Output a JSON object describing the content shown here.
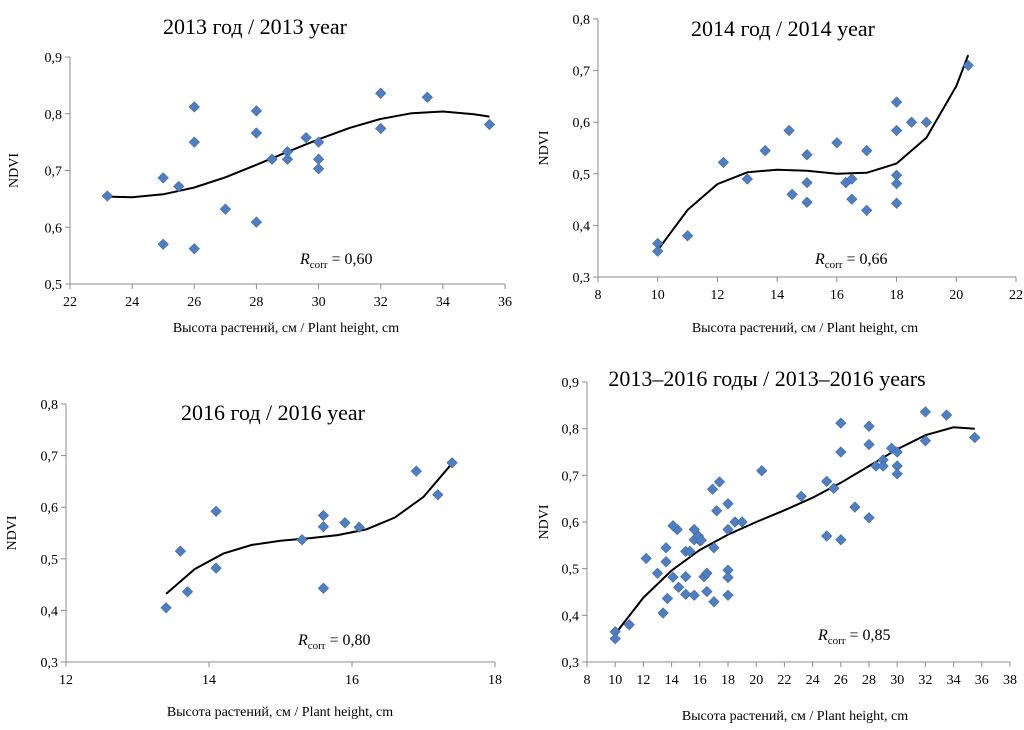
{
  "chart_data": [
    {
      "type": "scatter",
      "title": "2013 год / 2013 year",
      "xlabel": "Высота растений, см / Plant height, cm",
      "ylabel": "NDVI",
      "xlim": [
        22,
        36
      ],
      "ylim": [
        0.5,
        0.9
      ],
      "xticks": [
        22,
        24,
        26,
        28,
        30,
        32,
        34,
        36
      ],
      "yticks": [
        0.5,
        0.6,
        0.7,
        0.8,
        0.9
      ],
      "xtick_labels": [
        "22",
        "24",
        "26",
        "28",
        "30",
        "32",
        "34",
        "36"
      ],
      "ytick_labels": [
        "0,5",
        "0,6",
        "0,7",
        "0,8",
        "0,9"
      ],
      "grid": false,
      "correlation": {
        "symbol": "R",
        "sub": "corr",
        "text": " = 0,60"
      },
      "trendline": {
        "type": "polynomial",
        "points": [
          [
            23.2,
            0.654
          ],
          [
            24,
            0.653
          ],
          [
            25,
            0.658
          ],
          [
            26,
            0.67
          ],
          [
            27,
            0.688
          ],
          [
            28,
            0.71
          ],
          [
            29,
            0.733
          ],
          [
            30,
            0.755
          ],
          [
            31,
            0.775
          ],
          [
            32,
            0.791
          ],
          [
            33,
            0.801
          ],
          [
            34,
            0.804
          ],
          [
            35,
            0.799
          ],
          [
            35.5,
            0.795
          ]
        ]
      },
      "points": [
        [
          23.2,
          0.655
        ],
        [
          25,
          0.687
        ],
        [
          25.5,
          0.672
        ],
        [
          25,
          0.57
        ],
        [
          26,
          0.812
        ],
        [
          26,
          0.75
        ],
        [
          26,
          0.562
        ],
        [
          27,
          0.632
        ],
        [
          28,
          0.805
        ],
        [
          28,
          0.766
        ],
        [
          28,
          0.609
        ],
        [
          28.5,
          0.72
        ],
        [
          29,
          0.733
        ],
        [
          29,
          0.72
        ],
        [
          29.6,
          0.758
        ],
        [
          30,
          0.75
        ],
        [
          30,
          0.72
        ],
        [
          30,
          0.703
        ],
        [
          32,
          0.836
        ],
        [
          32,
          0.774
        ],
        [
          33.5,
          0.829
        ],
        [
          35.5,
          0.781
        ]
      ]
    },
    {
      "type": "scatter",
      "title": "2014 год / 2014 year",
      "xlabel": "Высота растений, см / Plant height, cm",
      "ylabel": "NDVI",
      "xlim": [
        8,
        22
      ],
      "ylim": [
        0.3,
        0.8
      ],
      "xticks": [
        8,
        10,
        12,
        14,
        16,
        18,
        20,
        22
      ],
      "yticks": [
        0.3,
        0.4,
        0.5,
        0.6,
        0.7,
        0.8
      ],
      "xtick_labels": [
        "8",
        "10",
        "12",
        "14",
        "16",
        "18",
        "20",
        "22"
      ],
      "ytick_labels": [
        "0,3",
        "0,4",
        "0,5",
        "0,6",
        "0,7",
        "0,8"
      ],
      "grid": false,
      "correlation": {
        "symbol": "R",
        "sub": "corr",
        "text": " = 0,66"
      },
      "trendline": {
        "type": "polynomial",
        "points": [
          [
            10,
            0.352
          ],
          [
            11,
            0.43
          ],
          [
            12,
            0.48
          ],
          [
            13,
            0.503
          ],
          [
            14,
            0.508
          ],
          [
            15,
            0.506
          ],
          [
            16,
            0.5
          ],
          [
            17,
            0.502
          ],
          [
            18,
            0.52
          ],
          [
            19,
            0.57
          ],
          [
            20,
            0.67
          ],
          [
            20.4,
            0.73
          ]
        ]
      },
      "points": [
        [
          10,
          0.365
        ],
        [
          10,
          0.35
        ],
        [
          11,
          0.38
        ],
        [
          12.2,
          0.522
        ],
        [
          13,
          0.49
        ],
        [
          13.6,
          0.545
        ],
        [
          14.4,
          0.584
        ],
        [
          14.5,
          0.46
        ],
        [
          15,
          0.537
        ],
        [
          15,
          0.483
        ],
        [
          15,
          0.445
        ],
        [
          16,
          0.56
        ],
        [
          16.3,
          0.483
        ],
        [
          16.5,
          0.49
        ],
        [
          16.5,
          0.451
        ],
        [
          17,
          0.545
        ],
        [
          17,
          0.429
        ],
        [
          18,
          0.639
        ],
        [
          18,
          0.584
        ],
        [
          18,
          0.497
        ],
        [
          18,
          0.481
        ],
        [
          18,
          0.443
        ],
        [
          18.5,
          0.6
        ],
        [
          19,
          0.6
        ],
        [
          20.4,
          0.71
        ]
      ]
    },
    {
      "type": "scatter",
      "title": "2016 год / 2016 year",
      "xlabel": "Высота растений, см / Plant height, cm",
      "ylabel": "NDVI",
      "xlim": [
        12,
        18
      ],
      "ylim": [
        0.3,
        0.8
      ],
      "xticks": [
        12,
        14,
        16,
        18
      ],
      "yticks": [
        0.3,
        0.4,
        0.5,
        0.6,
        0.7,
        0.8
      ],
      "xtick_labels": [
        "12",
        "14",
        "16",
        "18"
      ],
      "ytick_labels": [
        "0,3",
        "0,4",
        "0,5",
        "0,6",
        "0,7",
        "0,8"
      ],
      "grid": false,
      "correlation": {
        "symbol": "R",
        "sub": "corr",
        "text": " = 0,80"
      },
      "trendline": {
        "type": "polynomial",
        "points": [
          [
            13.4,
            0.432
          ],
          [
            13.8,
            0.48
          ],
          [
            14.2,
            0.51
          ],
          [
            14.6,
            0.527
          ],
          [
            15,
            0.535
          ],
          [
            15.4,
            0.54
          ],
          [
            15.8,
            0.546
          ],
          [
            16.2,
            0.557
          ],
          [
            16.6,
            0.58
          ],
          [
            17,
            0.62
          ],
          [
            17.4,
            0.685
          ]
        ]
      },
      "points": [
        [
          13.4,
          0.405
        ],
        [
          13.6,
          0.515
        ],
        [
          13.7,
          0.436
        ],
        [
          14.1,
          0.592
        ],
        [
          14.1,
          0.482
        ],
        [
          15.3,
          0.537
        ],
        [
          15.6,
          0.584
        ],
        [
          15.6,
          0.562
        ],
        [
          15.6,
          0.443
        ],
        [
          15.9,
          0.57
        ],
        [
          16.1,
          0.561
        ],
        [
          16.9,
          0.67
        ],
        [
          17.2,
          0.624
        ],
        [
          17.4,
          0.686
        ]
      ]
    },
    {
      "type": "scatter",
      "title": "2013–2016 годы / 2013–2016 years",
      "xlabel": "Высота растений, см / Plant height, cm",
      "ylabel": "NDVI",
      "xlim": [
        8,
        38
      ],
      "ylim": [
        0.3,
        0.9
      ],
      "xticks": [
        8,
        10,
        12,
        14,
        16,
        18,
        20,
        22,
        24,
        26,
        28,
        30,
        32,
        34,
        36,
        38
      ],
      "yticks": [
        0.3,
        0.4,
        0.5,
        0.6,
        0.7,
        0.8,
        0.9
      ],
      "xtick_labels": [
        "8",
        "10",
        "12",
        "14",
        "16",
        "18",
        "20",
        "22",
        "24",
        "26",
        "28",
        "30",
        "32",
        "34",
        "36",
        "38"
      ],
      "ytick_labels": [
        "0,3",
        "0,4",
        "0,5",
        "0,6",
        "0,7",
        "0,8",
        "0,9"
      ],
      "grid": false,
      "correlation": {
        "symbol": "R",
        "sub": "corr",
        "text": " = 0,85"
      },
      "trendline": {
        "type": "polynomial",
        "points": [
          [
            10,
            0.36
          ],
          [
            12,
            0.438
          ],
          [
            14,
            0.496
          ],
          [
            16,
            0.54
          ],
          [
            18,
            0.573
          ],
          [
            20,
            0.6
          ],
          [
            22,
            0.625
          ],
          [
            24,
            0.652
          ],
          [
            26,
            0.684
          ],
          [
            28,
            0.72
          ],
          [
            30,
            0.756
          ],
          [
            32,
            0.786
          ],
          [
            34,
            0.803
          ],
          [
            35.5,
            0.8
          ]
        ]
      },
      "points": [
        [
          10,
          0.365
        ],
        [
          10,
          0.35
        ],
        [
          11,
          0.38
        ],
        [
          12.2,
          0.522
        ],
        [
          13,
          0.49
        ],
        [
          13.6,
          0.545
        ],
        [
          14.4,
          0.584
        ],
        [
          14.5,
          0.46
        ],
        [
          15,
          0.537
        ],
        [
          15,
          0.483
        ],
        [
          15,
          0.445
        ],
        [
          16,
          0.56
        ],
        [
          16.3,
          0.483
        ],
        [
          16.5,
          0.49
        ],
        [
          16.5,
          0.451
        ],
        [
          17,
          0.545
        ],
        [
          17,
          0.429
        ],
        [
          18,
          0.639
        ],
        [
          18,
          0.584
        ],
        [
          18,
          0.497
        ],
        [
          18,
          0.481
        ],
        [
          18,
          0.443
        ],
        [
          18.5,
          0.6
        ],
        [
          19,
          0.6
        ],
        [
          20.4,
          0.71
        ],
        [
          13.4,
          0.405
        ],
        [
          13.6,
          0.515
        ],
        [
          13.7,
          0.436
        ],
        [
          14.1,
          0.592
        ],
        [
          14.1,
          0.482
        ],
        [
          15.3,
          0.537
        ],
        [
          15.6,
          0.584
        ],
        [
          15.6,
          0.562
        ],
        [
          15.6,
          0.443
        ],
        [
          15.9,
          0.57
        ],
        [
          16.1,
          0.561
        ],
        [
          16.9,
          0.67
        ],
        [
          17.2,
          0.624
        ],
        [
          17.4,
          0.686
        ],
        [
          23.2,
          0.655
        ],
        [
          25,
          0.687
        ],
        [
          25.5,
          0.672
        ],
        [
          25,
          0.57
        ],
        [
          26,
          0.812
        ],
        [
          26,
          0.75
        ],
        [
          26,
          0.562
        ],
        [
          27,
          0.632
        ],
        [
          28,
          0.805
        ],
        [
          28,
          0.766
        ],
        [
          28,
          0.609
        ],
        [
          28.5,
          0.72
        ],
        [
          29,
          0.733
        ],
        [
          29,
          0.72
        ],
        [
          29.6,
          0.758
        ],
        [
          30,
          0.75
        ],
        [
          30,
          0.72
        ],
        [
          30,
          0.703
        ],
        [
          32,
          0.836
        ],
        [
          32,
          0.774
        ],
        [
          33.5,
          0.829
        ],
        [
          35.5,
          0.781
        ]
      ]
    }
  ]
}
